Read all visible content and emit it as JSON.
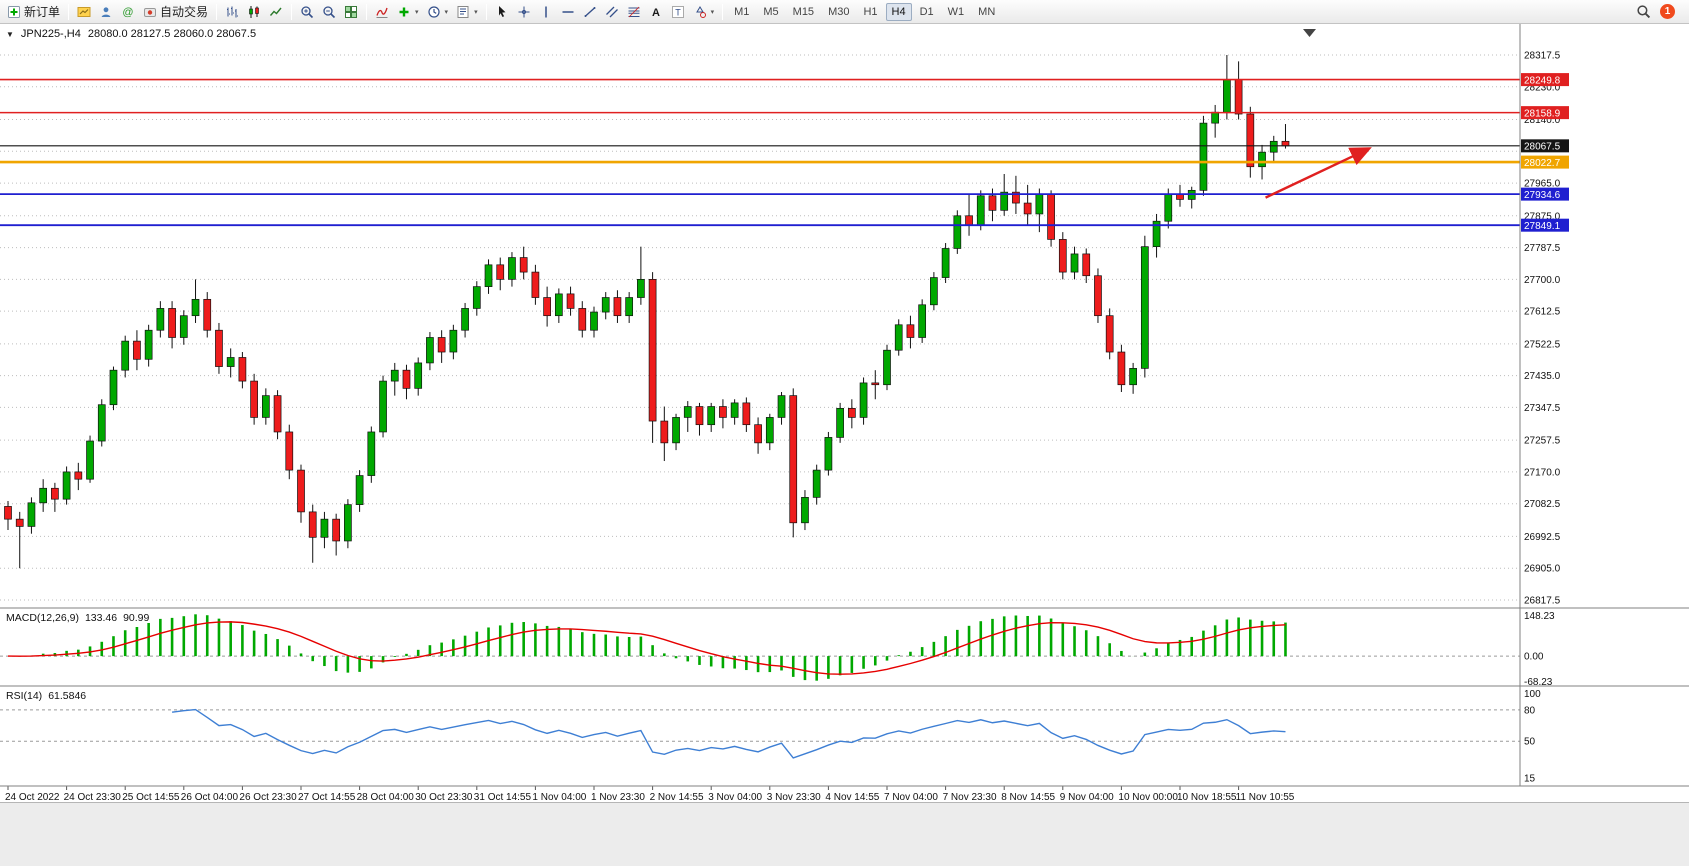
{
  "toolbar": {
    "buttons": [
      {
        "name": "new-order",
        "icon": "new-order",
        "label": "新订单"
      },
      {
        "name": "sep"
      },
      {
        "name": "chart-window",
        "icon": "chart-window"
      },
      {
        "name": "profile",
        "icon": "profile"
      },
      {
        "name": "metaeditor",
        "icon": "metaeditor"
      },
      {
        "name": "autotrading",
        "icon": "autotrading",
        "label": "自动交易"
      },
      {
        "name": "sep"
      },
      {
        "name": "bar-chart-mode",
        "icon": "bars"
      },
      {
        "name": "candle-mode",
        "icon": "candles"
      },
      {
        "name": "line-chart-mode",
        "icon": "linechart"
      },
      {
        "name": "sep"
      },
      {
        "name": "zoom-in",
        "icon": "zoom-in"
      },
      {
        "name": "zoom-out",
        "icon": "zoom-out"
      },
      {
        "name": "tile-windows",
        "icon": "tile"
      },
      {
        "name": "sep"
      },
      {
        "name": "indicator-window",
        "icon": "indicator"
      },
      {
        "name": "add-indicator",
        "icon": "add",
        "dropdown": true
      },
      {
        "name": "periods",
        "icon": "clock",
        "dropdown": true
      },
      {
        "name": "templates",
        "icon": "template",
        "dropdown": true
      },
      {
        "name": "sep"
      },
      {
        "name": "cursor",
        "icon": "cursor"
      },
      {
        "name": "crosshair",
        "icon": "crosshair"
      },
      {
        "name": "vertical-line",
        "icon": "vline"
      },
      {
        "name": "horizontal-line",
        "icon": "hline"
      },
      {
        "name": "trendline",
        "icon": "trendline"
      },
      {
        "name": "equidistant-channel",
        "icon": "channel"
      },
      {
        "name": "fibonacci",
        "icon": "fibo"
      },
      {
        "name": "text",
        "icon": "text-a"
      },
      {
        "name": "text-label",
        "icon": "text-t"
      },
      {
        "name": "arrows",
        "icon": "shapes",
        "dropdown": true
      },
      {
        "name": "sep"
      }
    ],
    "timeframes": [
      "M1",
      "M5",
      "M15",
      "M30",
      "H1",
      "H4",
      "D1",
      "W1",
      "MN"
    ],
    "active_timeframe": "H4",
    "notification_count": "1"
  },
  "chart_data": {
    "type": "candlestick",
    "symbol": "JPN225-",
    "period": "H4",
    "title": "JPN225-,H4",
    "ohlc_readout": "28080.0 28127.5 28060.0 28067.5",
    "current_price": 28067.5,
    "colors": {
      "bull": "#00a800",
      "bear": "#ee1c1c",
      "wick": "#111111",
      "grid": "#bdbdbd"
    },
    "price_axis": {
      "labels": [
        28317.5,
        28230.0,
        28140.0,
        27965.0,
        27875.0,
        27787.5,
        27700.0,
        27612.5,
        27522.5,
        27435.0,
        27347.5,
        27257.5,
        27170.0,
        27082.5,
        26992.5,
        26905.0,
        26817.5
      ],
      "extra_gridlines": [
        28052.5
      ]
    },
    "hlines": [
      {
        "price": 28249.8,
        "color": "#e02020",
        "width": 1.6,
        "badge": "28249.8"
      },
      {
        "price": 28158.9,
        "color": "#e02020",
        "width": 1.6,
        "badge": "28158.9"
      },
      {
        "price": 28067.5,
        "color": "#151515",
        "width": 1.2,
        "badge": "28067.5"
      },
      {
        "price": 28022.7,
        "color": "#f0a500",
        "width": 2.6,
        "badge": "28022.7"
      },
      {
        "price": 27934.6,
        "color": "#1f1fd0",
        "width": 1.8,
        "badge": "27934.6"
      },
      {
        "price": 27849.1,
        "color": "#1f1fd0",
        "width": 1.8,
        "badge": "27849.1"
      }
    ],
    "arrow_annotation": {
      "from_index": 107.3,
      "from_price": 27925,
      "to_index": 116.0,
      "to_price": 28058,
      "color": "#e02020"
    },
    "time_labels": [
      "24 Oct 2022",
      "24 Oct 23:30",
      "25 Oct 14:55",
      "26 Oct 04:00",
      "26 Oct 23:30",
      "27 Oct 14:55",
      "28 Oct 04:00",
      "30 Oct 23:30",
      "31 Oct 14:55",
      "1 Nov 04:00",
      "1 Nov 23:30",
      "2 Nov 14:55",
      "3 Nov 04:00",
      "3 Nov 23:30",
      "4 Nov 14:55",
      "7 Nov 04:00",
      "7 Nov 23:30",
      "8 Nov 14:55",
      "9 Nov 04:00",
      "10 Nov 00:00",
      "10 Nov 18:55",
      "11 Nov 10:55"
    ],
    "candles": [
      [
        27075,
        27090,
        27010,
        27040
      ],
      [
        27040,
        27060,
        26905,
        27020
      ],
      [
        27020,
        27100,
        27000,
        27085
      ],
      [
        27085,
        27150,
        27060,
        27125
      ],
      [
        27125,
        27140,
        27060,
        27095
      ],
      [
        27095,
        27185,
        27080,
        27170
      ],
      [
        27170,
        27195,
        27120,
        27150
      ],
      [
        27150,
        27270,
        27140,
        27255
      ],
      [
        27255,
        27370,
        27240,
        27355
      ],
      [
        27355,
        27460,
        27340,
        27450
      ],
      [
        27450,
        27545,
        27430,
        27530
      ],
      [
        27530,
        27560,
        27450,
        27480
      ],
      [
        27480,
        27575,
        27460,
        27560
      ],
      [
        27560,
        27640,
        27540,
        27620
      ],
      [
        27620,
        27640,
        27510,
        27540
      ],
      [
        27540,
        27615,
        27520,
        27600
      ],
      [
        27600,
        27700,
        27580,
        27645
      ],
      [
        27645,
        27665,
        27540,
        27560
      ],
      [
        27560,
        27580,
        27440,
        27460
      ],
      [
        27460,
        27510,
        27430,
        27485
      ],
      [
        27485,
        27500,
        27400,
        27420
      ],
      [
        27420,
        27440,
        27300,
        27320
      ],
      [
        27320,
        27400,
        27300,
        27380
      ],
      [
        27380,
        27395,
        27260,
        27280
      ],
      [
        27280,
        27300,
        27150,
        27175
      ],
      [
        27175,
        27190,
        27030,
        27060
      ],
      [
        27060,
        27080,
        26920,
        26990
      ],
      [
        26990,
        27060,
        26960,
        27040
      ],
      [
        27040,
        27055,
        26940,
        26980
      ],
      [
        26980,
        27095,
        26960,
        27080
      ],
      [
        27080,
        27175,
        27060,
        27160
      ],
      [
        27160,
        27295,
        27140,
        27280
      ],
      [
        27280,
        27435,
        27265,
        27420
      ],
      [
        27420,
        27470,
        27380,
        27450
      ],
      [
        27450,
        27465,
        27370,
        27400
      ],
      [
        27400,
        27485,
        27380,
        27470
      ],
      [
        27470,
        27555,
        27450,
        27540
      ],
      [
        27540,
        27560,
        27470,
        27500
      ],
      [
        27500,
        27575,
        27480,
        27560
      ],
      [
        27560,
        27635,
        27540,
        27620
      ],
      [
        27620,
        27695,
        27600,
        27680
      ],
      [
        27680,
        27755,
        27660,
        27740
      ],
      [
        27740,
        27760,
        27670,
        27700
      ],
      [
        27700,
        27775,
        27680,
        27760
      ],
      [
        27760,
        27790,
        27700,
        27720
      ],
      [
        27720,
        27740,
        27630,
        27650
      ],
      [
        27650,
        27680,
        27570,
        27600
      ],
      [
        27600,
        27675,
        27580,
        27660
      ],
      [
        27660,
        27680,
        27600,
        27620
      ],
      [
        27620,
        27640,
        27540,
        27560
      ],
      [
        27560,
        27625,
        27540,
        27610
      ],
      [
        27610,
        27665,
        27590,
        27650
      ],
      [
        27650,
        27670,
        27580,
        27600
      ],
      [
        27600,
        27665,
        27580,
        27650
      ],
      [
        27650,
        27790,
        27630,
        27700
      ],
      [
        27700,
        27720,
        27250,
        27310
      ],
      [
        27310,
        27350,
        27200,
        27250
      ],
      [
        27250,
        27330,
        27230,
        27320
      ],
      [
        27320,
        27365,
        27280,
        27350
      ],
      [
        27350,
        27360,
        27270,
        27300
      ],
      [
        27300,
        27360,
        27280,
        27350
      ],
      [
        27350,
        27370,
        27290,
        27320
      ],
      [
        27320,
        27370,
        27300,
        27360
      ],
      [
        27360,
        27375,
        27280,
        27300
      ],
      [
        27300,
        27320,
        27220,
        27250
      ],
      [
        27250,
        27330,
        27230,
        27320
      ],
      [
        27320,
        27390,
        27300,
        27380
      ],
      [
        27380,
        27400,
        26990,
        27030
      ],
      [
        27030,
        27120,
        27010,
        27100
      ],
      [
        27100,
        27190,
        27080,
        27175
      ],
      [
        27175,
        27280,
        27160,
        27265
      ],
      [
        27265,
        27360,
        27250,
        27345
      ],
      [
        27345,
        27370,
        27290,
        27320
      ],
      [
        27320,
        27430,
        27300,
        27415
      ],
      [
        27415,
        27450,
        27370,
        27410
      ],
      [
        27410,
        27520,
        27395,
        27505
      ],
      [
        27505,
        27590,
        27490,
        27575
      ],
      [
        27575,
        27600,
        27510,
        27540
      ],
      [
        27540,
        27645,
        27525,
        27630
      ],
      [
        27630,
        27720,
        27615,
        27705
      ],
      [
        27705,
        27800,
        27690,
        27785
      ],
      [
        27785,
        27890,
        27770,
        27875
      ],
      [
        27875,
        27935,
        27820,
        27850
      ],
      [
        27850,
        27945,
        27835,
        27930
      ],
      [
        27930,
        27950,
        27860,
        27890
      ],
      [
        27890,
        27990,
        27875,
        27940
      ],
      [
        27940,
        27985,
        27880,
        27910
      ],
      [
        27910,
        27960,
        27850,
        27880
      ],
      [
        27880,
        27950,
        27830,
        27935
      ],
      [
        27935,
        27945,
        27790,
        27810
      ],
      [
        27810,
        27830,
        27700,
        27720
      ],
      [
        27720,
        27790,
        27700,
        27770
      ],
      [
        27770,
        27785,
        27690,
        27710
      ],
      [
        27710,
        27730,
        27580,
        27600
      ],
      [
        27600,
        27620,
        27480,
        27500
      ],
      [
        27500,
        27520,
        27390,
        27410
      ],
      [
        27410,
        27470,
        27385,
        27455
      ],
      [
        27455,
        27820,
        27430,
        27790
      ],
      [
        27790,
        27880,
        27760,
        27860
      ],
      [
        27860,
        27950,
        27840,
        27935
      ],
      [
        27935,
        27960,
        27900,
        27920
      ],
      [
        27920,
        27955,
        27895,
        27945
      ],
      [
        27945,
        28150,
        27930,
        28130
      ],
      [
        28130,
        28180,
        28090,
        28160
      ],
      [
        28160,
        28317.5,
        28140,
        28250
      ],
      [
        28250,
        28300,
        28140,
        28155
      ],
      [
        28155,
        28175,
        27980,
        28010
      ],
      [
        28010,
        28070,
        27975,
        28050
      ],
      [
        28050,
        28095,
        28020,
        28080
      ],
      [
        28080,
        28127.5,
        28060,
        28067.5
      ]
    ],
    "indicators": {
      "macd": {
        "label": "MACD(12,26,9)",
        "value_main": "133.46",
        "value_signal": "90.99",
        "fast": 12,
        "slow": 26,
        "signal": 9,
        "axis_labels": [
          "148.23",
          "0.00",
          "-68.23"
        ],
        "histogram_color": "#00a800",
        "signal_color": "#e60000"
      },
      "rsi": {
        "label": "RSI(14)",
        "value": "61.5846",
        "period": 14,
        "axis_labels": [
          100,
          80,
          50,
          15
        ],
        "levels": [
          80,
          50
        ],
        "line_color": "#3e7fd4"
      }
    }
  }
}
